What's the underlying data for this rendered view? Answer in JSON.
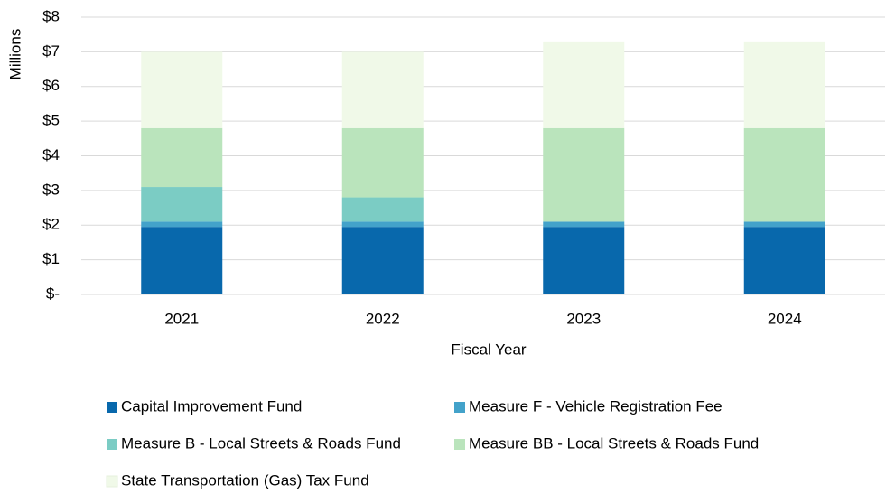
{
  "chart_data": {
    "type": "stacked_bar",
    "y_label": "Millions",
    "x_label": "Fiscal Year",
    "categories": [
      "2021",
      "2022",
      "2023",
      "2024"
    ],
    "series": [
      {
        "name": "Capital Improvement Fund",
        "color": "#0868ac",
        "values": [
          1.95,
          1.95,
          1.95,
          1.95
        ]
      },
      {
        "name": "Measure F - Vehicle Registration Fee",
        "color": "#43a2ca",
        "values": [
          0.15,
          0.15,
          0.15,
          0.15
        ]
      },
      {
        "name": "Measure B - Local Streets & Roads Fund",
        "color": "#7bccc4",
        "values": [
          1.0,
          0.7,
          0,
          0
        ]
      },
      {
        "name": "Measure BB - Local Streets & Roads Fund",
        "color": "#bae4bc",
        "values": [
          1.7,
          2.0,
          2.7,
          2.7
        ]
      },
      {
        "name": "State Transportation (Gas) Tax Fund",
        "color": "#f0f9e8",
        "values": [
          2.2,
          2.2,
          2.5,
          2.5
        ]
      }
    ],
    "ylim": [
      0,
      8
    ],
    "yticks": [
      {
        "value": 0,
        "label": "$-"
      },
      {
        "value": 1,
        "label": "$1"
      },
      {
        "value": 2,
        "label": "$2"
      },
      {
        "value": 3,
        "label": "$3"
      },
      {
        "value": 4,
        "label": "$4"
      },
      {
        "value": 5,
        "label": "$5"
      },
      {
        "value": 6,
        "label": "$6"
      },
      {
        "value": 7,
        "label": "$7"
      },
      {
        "value": 8,
        "label": "$8"
      }
    ],
    "grid": true,
    "legend": "bottom"
  }
}
